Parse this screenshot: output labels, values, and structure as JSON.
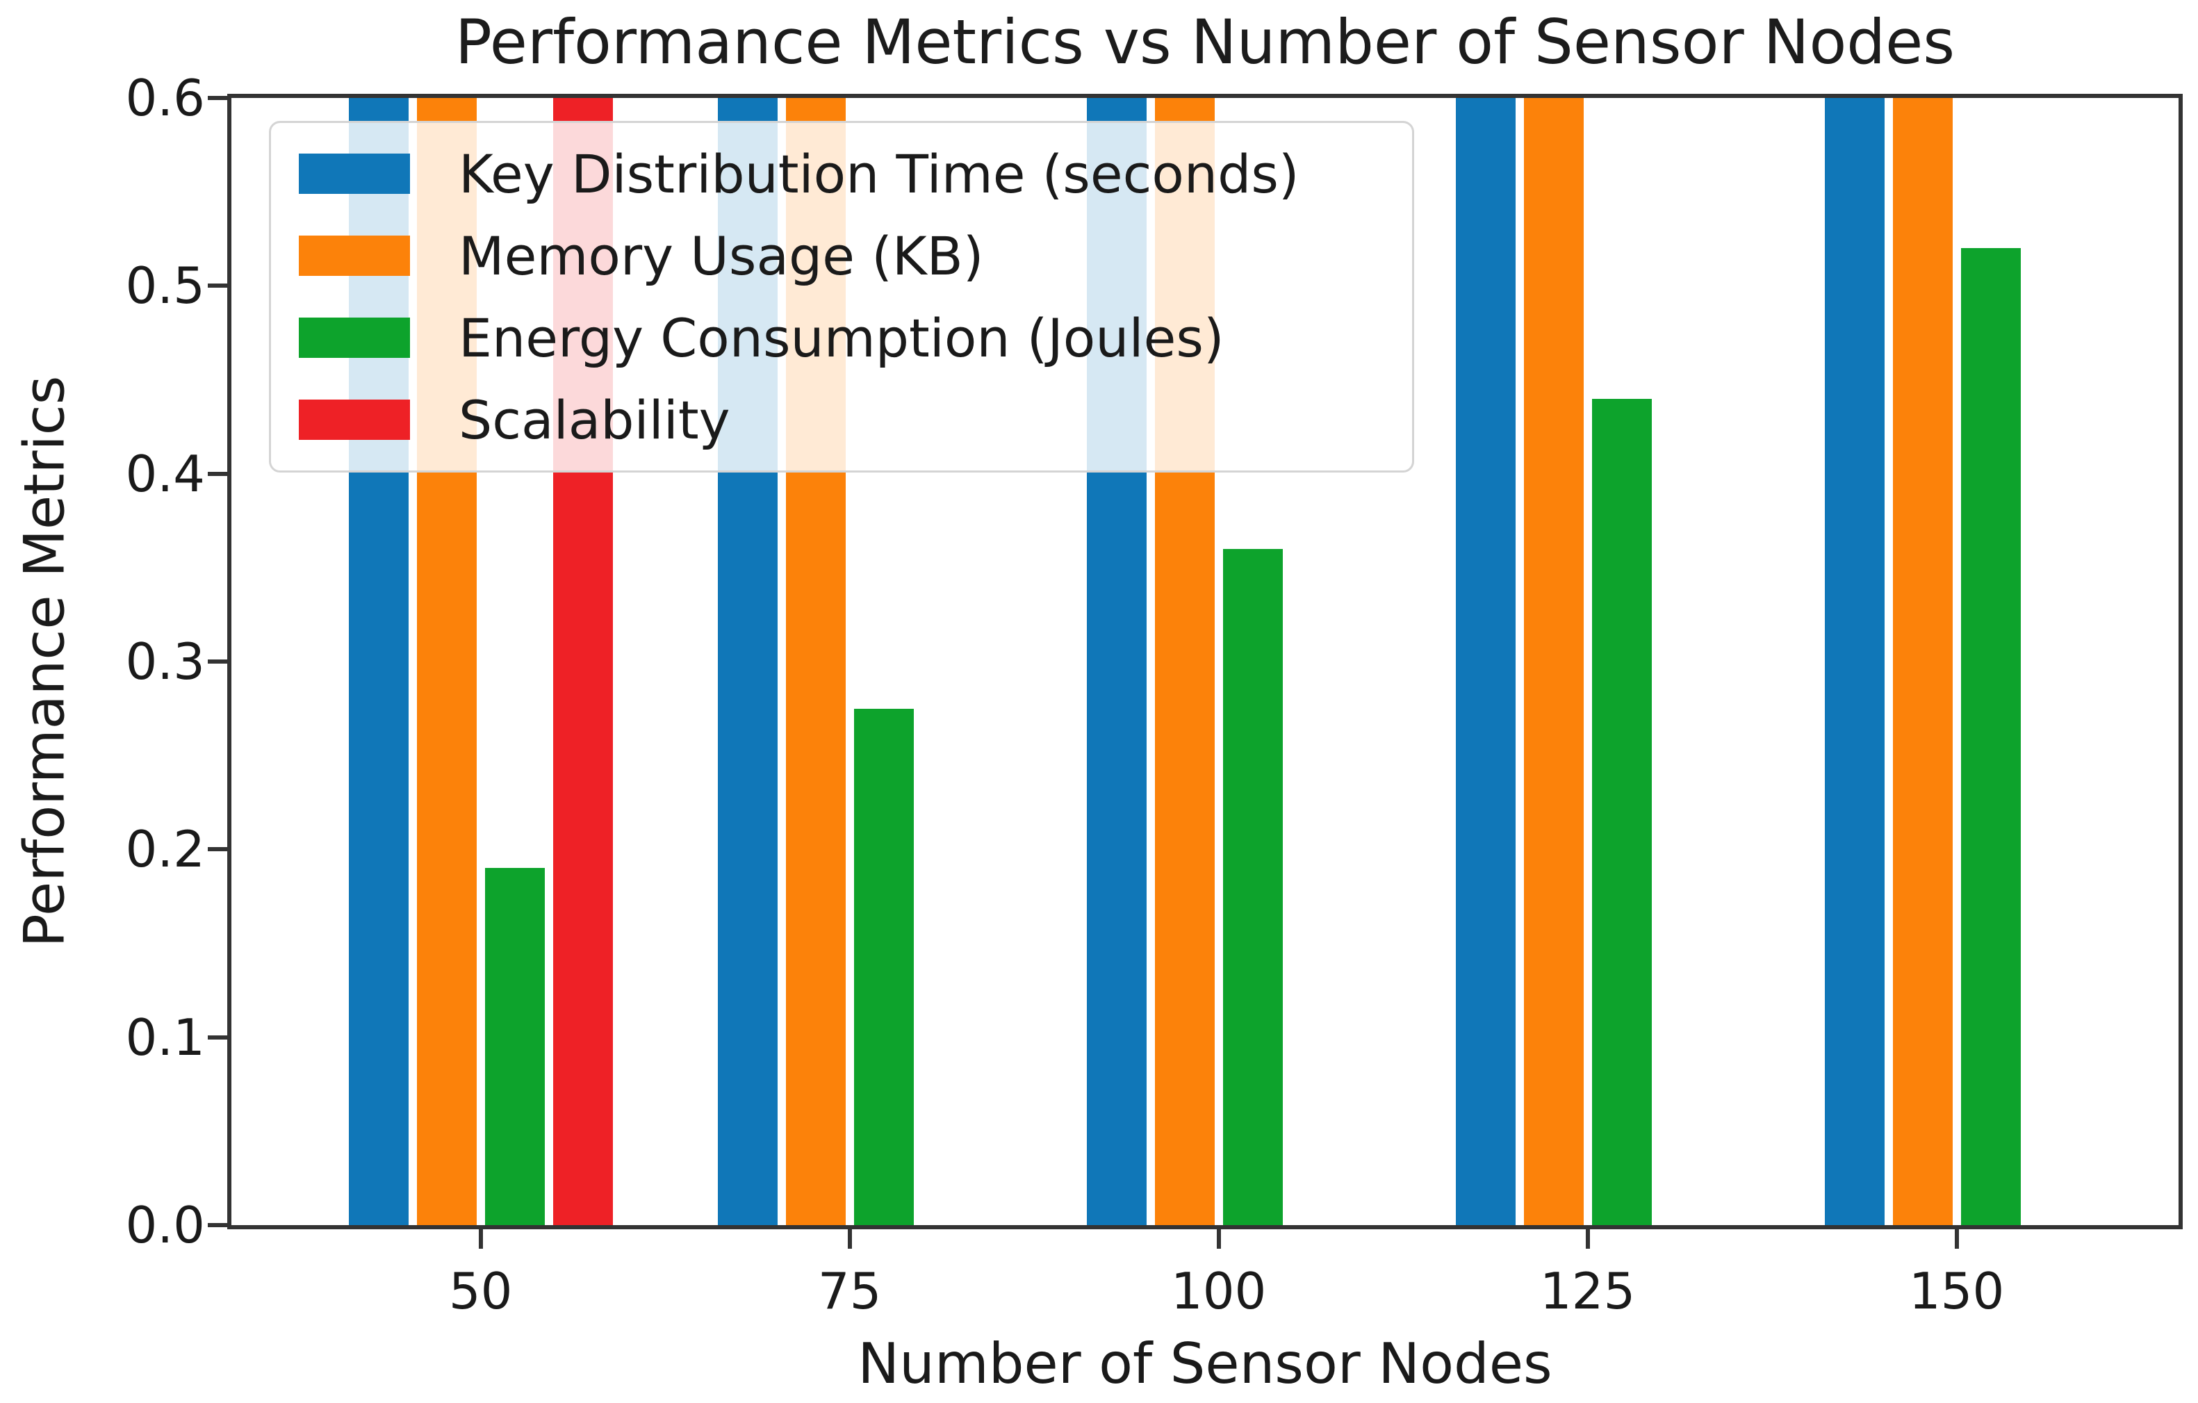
{
  "figure": {
    "title": "Performance Metrics vs Number of Sensor Nodes",
    "xlabel": "Number of Sensor Nodes",
    "ylabel": "Performance Metrics"
  },
  "chart_data": {
    "type": "bar",
    "title": "Performance Metrics vs Number of Sensor Nodes",
    "xlabel": "Number of Sensor Nodes",
    "ylabel": "Performance Metrics",
    "categories": [
      "50",
      "75",
      "100",
      "125",
      "150"
    ],
    "series": [
      {
        "name": "Key Distribution Time (seconds)",
        "color": "#1077b8",
        "values": [
          0.6,
          0.6,
          0.6,
          0.6,
          0.6
        ],
        "clipped_at_ymax": [
          true,
          true,
          true,
          true,
          true
        ]
      },
      {
        "name": "Memory Usage (KB)",
        "color": "#fc820a",
        "values": [
          0.6,
          0.6,
          0.6,
          0.6,
          0.6
        ],
        "clipped_at_ymax": [
          true,
          true,
          true,
          true,
          true
        ]
      },
      {
        "name": "Energy Consumption (Joules)",
        "color": "#0da32c",
        "values": [
          0.19,
          0.275,
          0.36,
          0.44,
          0.52
        ],
        "clipped_at_ymax": [
          false,
          false,
          false,
          false,
          false
        ]
      },
      {
        "name": "Scalability",
        "color": "#ee2126",
        "values": [
          0.6,
          0,
          0,
          0,
          0
        ],
        "clipped_at_ymax": [
          true,
          false,
          false,
          false,
          false
        ]
      }
    ],
    "ylim": [
      0.0,
      0.6
    ],
    "yticks": [
      "0.0",
      "0.1",
      "0.2",
      "0.3",
      "0.4",
      "0.5",
      "0.6"
    ],
    "grid": false,
    "legend": {
      "position": "upper left",
      "entries": [
        "Key Distribution Time (seconds)",
        "Memory Usage (KB)",
        "Energy Consumption (Joules)",
        "Scalability"
      ]
    },
    "note": "Blue and orange bars in all groups, and the red bar in group 50, extend beyond the y-axis maximum and are clipped at 0.6. Scalability has no visible bar for groups 75-150."
  }
}
